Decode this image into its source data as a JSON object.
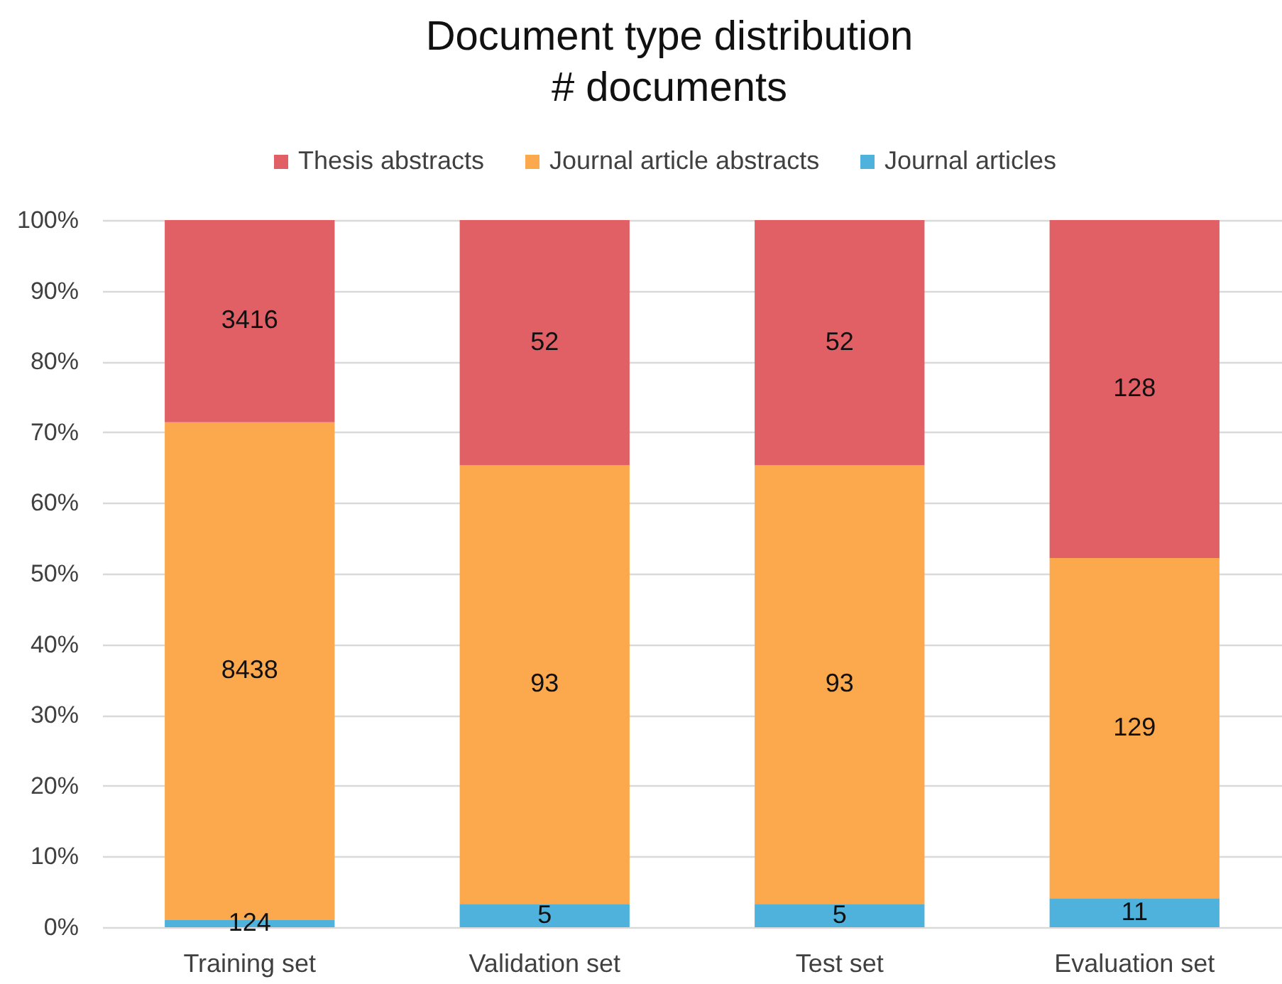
{
  "chart_data": {
    "type": "bar",
    "title": "Document type distribution",
    "subtitle": "# documents",
    "categories": [
      "Training set",
      "Validation set",
      "Test set",
      "Evaluation set"
    ],
    "stacked": true,
    "series": [
      {
        "name": "Journal articles",
        "color": "#4fb2dd",
        "values": [
          1.0,
          3.3,
          3.3,
          4.1
        ]
      },
      {
        "name": "Journal article abstracts",
        "color": "#fca94e",
        "values": [
          70.4,
          62.0,
          62.0,
          48.1
        ]
      },
      {
        "name": "Thesis abstracts",
        "color": "#e06066",
        "values": [
          28.6,
          34.7,
          34.7,
          47.8
        ]
      }
    ],
    "annotations": [
      "124",
      "5",
      "5",
      "11",
      "8438",
      "93",
      "93",
      "129",
      "3416",
      "52",
      "52",
      "128"
    ],
    "ylim": [
      0,
      100
    ],
    "yticks": [
      {
        "value": 0,
        "label": "0%"
      },
      {
        "value": 10,
        "label": "10%"
      },
      {
        "value": 20,
        "label": "20%"
      },
      {
        "value": 30,
        "label": "30%"
      },
      {
        "value": 40,
        "label": "40%"
      },
      {
        "value": 50,
        "label": "50%"
      },
      {
        "value": 60,
        "label": "60%"
      },
      {
        "value": 70,
        "label": "70%"
      },
      {
        "value": 80,
        "label": "80%"
      },
      {
        "value": 90,
        "label": "90%"
      },
      {
        "value": 100,
        "label": "100%"
      }
    ],
    "grid": "y",
    "legend": "top"
  }
}
